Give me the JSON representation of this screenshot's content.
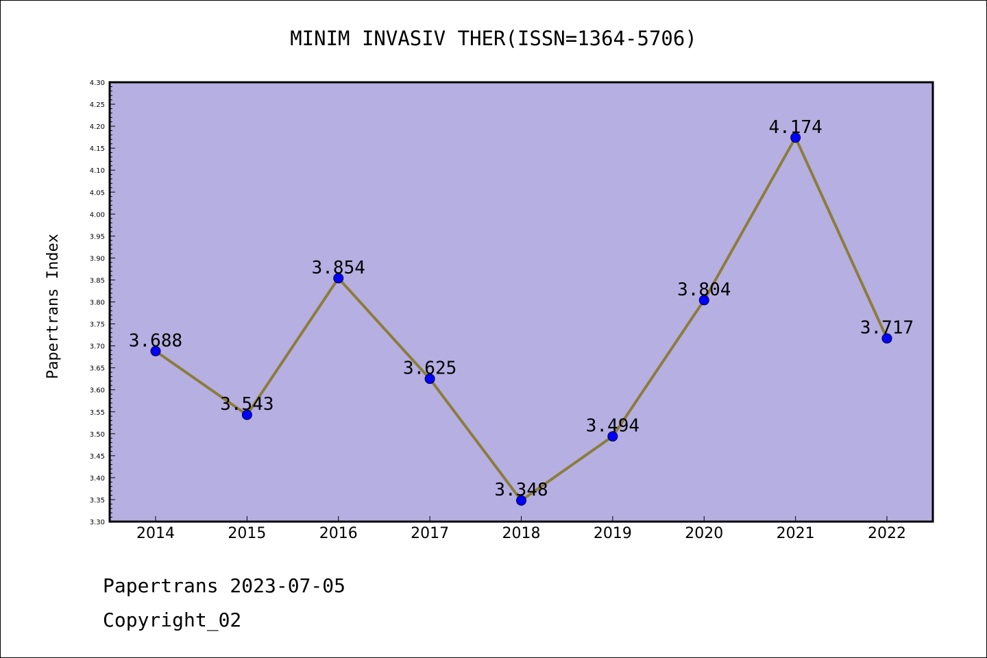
{
  "chart_data": {
    "type": "line",
    "title": "MINIM INVASIV THER(ISSN=1364-5706)",
    "ylabel": "Papertrans Index",
    "xlabel": "",
    "categories": [
      "2014",
      "2015",
      "2016",
      "2017",
      "2018",
      "2019",
      "2020",
      "2021",
      "2022"
    ],
    "series": [
      {
        "values": [
          3.688,
          3.543,
          3.854,
          3.625,
          3.348,
          3.494,
          3.804,
          4.174,
          3.717
        ],
        "data_labels": [
          "3.688",
          "3.543",
          "3.854",
          "3.625",
          "3.348",
          "3.494",
          "3.804",
          "4.174",
          "3.717"
        ]
      }
    ],
    "ylim": [
      3.3,
      4.3
    ],
    "yticks": [
      "3.30",
      "3.35",
      "3.40",
      "3.45",
      "3.50",
      "3.55",
      "3.60",
      "3.65",
      "3.70",
      "3.75",
      "3.80",
      "3.85",
      "3.90",
      "3.95",
      "4.00",
      "4.05",
      "4.10",
      "4.15",
      "4.20",
      "4.25",
      "4.30"
    ],
    "grid": false,
    "legend": "none",
    "colors": {
      "plot_background": "#b5afe2",
      "line": "#8b7d3a",
      "marker": "#0000ff"
    }
  },
  "footer": {
    "line1": "Papertrans 2023-07-05",
    "line2": "Copyright_02"
  }
}
